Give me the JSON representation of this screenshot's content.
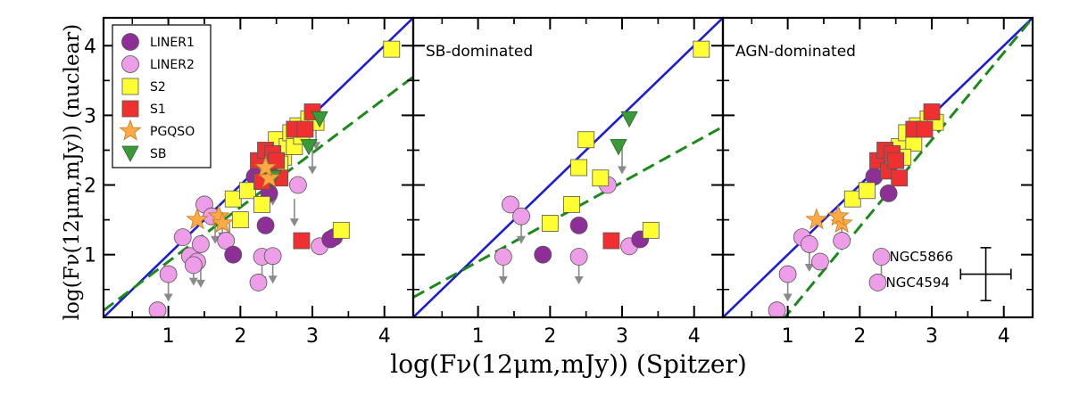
{
  "chart_data": {
    "type": "scatter",
    "xlabel": "log(Fν(12μm,mJy)) (Spitzer)",
    "ylabel": "log(Fν(12μm,mJy)) (nuclear)",
    "xlim": [
      0.1,
      4.4
    ],
    "ylim": [
      0.1,
      4.4
    ],
    "xticks": [
      "1",
      "2",
      "3",
      "4"
    ],
    "yticks": [
      "1",
      "2",
      "3",
      "4"
    ],
    "grid": false,
    "legend": {
      "location": "top-left",
      "entries": [
        {
          "label": "LINER1",
          "marker": "circle",
          "color": "#8e2f98"
        },
        {
          "label": "LINER2",
          "marker": "circle",
          "color": "#ee9ee8"
        },
        {
          "label": "S2",
          "marker": "square",
          "color": "#ffff33"
        },
        {
          "label": "S1",
          "marker": "square",
          "color": "#f03030"
        },
        {
          "label": "PGQSO",
          "marker": "star",
          "color": "#ffaa44"
        },
        {
          "label": "SB",
          "marker": "triangle-down",
          "color": "#3a9a3a"
        }
      ]
    },
    "panels": [
      {
        "label": "",
        "fits": [
          {
            "style": "one-to-one",
            "color": "#1c1cd8",
            "slope": 1.0,
            "intercept": 0.0
          },
          {
            "style": "dashed",
            "color": "#1a8a1a",
            "slope": 0.78,
            "intercept": 0.12
          }
        ],
        "points": {
          "LINER1": [
            [
              2.2,
              2.12
            ],
            [
              2.4,
              1.88
            ],
            [
              2.35,
              1.42
            ],
            [
              1.9,
              1.0
            ],
            [
              3.3,
              1.25
            ],
            [
              3.25,
              1.22
            ]
          ],
          "LINER2": [
            [
              0.85,
              0.2
            ],
            [
              1.0,
              0.72
            ],
            [
              1.2,
              1.25
            ],
            [
              1.3,
              0.98
            ],
            [
              1.4,
              0.9
            ],
            [
              1.45,
              1.15
            ],
            [
              1.5,
              1.72
            ],
            [
              1.6,
              1.55
            ],
            [
              1.8,
              1.2
            ],
            [
              2.25,
              0.6
            ],
            [
              2.3,
              0.97
            ],
            [
              2.45,
              0.98
            ],
            [
              2.8,
              2.0
            ],
            [
              3.1,
              1.12
            ],
            [
              1.35,
              0.85
            ]
          ],
          "S2": [
            [
              1.9,
              1.8
            ],
            [
              2.0,
              1.5
            ],
            [
              2.1,
              1.92
            ],
            [
              2.3,
              1.72
            ],
            [
              2.4,
              2.3
            ],
            [
              2.5,
              2.65
            ],
            [
              2.6,
              2.4
            ],
            [
              2.65,
              2.55
            ],
            [
              2.7,
              2.75
            ],
            [
              2.75,
              2.55
            ],
            [
              2.8,
              2.85
            ],
            [
              2.95,
              2.95
            ],
            [
              3.05,
              2.9
            ],
            [
              3.4,
              1.35
            ],
            [
              4.1,
              3.95
            ],
            [
              2.55,
              2.3
            ],
            [
              2.85,
              2.7
            ]
          ],
          "S1": [
            [
              2.25,
              2.35
            ],
            [
              2.35,
              2.5
            ],
            [
              2.4,
              2.2
            ],
            [
              2.45,
              2.45
            ],
            [
              2.5,
              2.35
            ],
            [
              2.55,
              2.1
            ],
            [
              2.75,
              2.8
            ],
            [
              2.9,
              2.8
            ],
            [
              3.0,
              3.05
            ],
            [
              2.85,
              1.2
            ],
            [
              2.3,
              2.05
            ]
          ],
          "PGQSO": [
            [
              1.4,
              1.5
            ],
            [
              1.7,
              1.55
            ],
            [
              1.75,
              1.45
            ],
            [
              2.4,
              2.1
            ],
            [
              2.35,
              2.25
            ]
          ],
          "SB": [
            [
              2.45,
              2.1
            ],
            [
              3.1,
              2.95
            ],
            [
              2.95,
              2.55
            ]
          ]
        },
        "upper_limits": [
          [
            1.0,
            0.72
          ],
          [
            1.35,
            0.95
          ],
          [
            1.45,
            0.92
          ],
          [
            1.65,
            1.55
          ],
          [
            1.75,
            1.6
          ],
          [
            1.85,
            1.45
          ],
          [
            2.3,
            0.97
          ],
          [
            2.45,
            0.98
          ],
          [
            2.55,
            2.4
          ],
          [
            2.75,
            1.8
          ],
          [
            3.0,
            2.55
          ],
          [
            3.05,
            2.9
          ],
          [
            2.45,
            2.1
          ]
        ]
      },
      {
        "label": "SB-dominated",
        "fits": [
          {
            "style": "one-to-one",
            "color": "#1c1cd8",
            "slope": 1.0,
            "intercept": 0.0
          },
          {
            "style": "dashed",
            "color": "#1a8a1a",
            "slope": 0.57,
            "intercept": 0.33
          }
        ],
        "points": {
          "LINER1": [
            [
              1.9,
              1.0
            ],
            [
              2.4,
              1.42
            ],
            [
              3.25,
              1.22
            ]
          ],
          "LINER2": [
            [
              1.35,
              0.97
            ],
            [
              1.45,
              1.72
            ],
            [
              1.6,
              1.55
            ],
            [
              2.4,
              0.97
            ],
            [
              2.8,
              2.0
            ],
            [
              3.1,
              1.12
            ]
          ],
          "S2": [
            [
              2.0,
              1.45
            ],
            [
              2.3,
              1.72
            ],
            [
              2.4,
              2.25
            ],
            [
              2.5,
              2.65
            ],
            [
              2.7,
              2.1
            ],
            [
              3.4,
              1.35
            ],
            [
              4.1,
              3.95
            ]
          ],
          "S1": [
            [
              2.85,
              1.2
            ]
          ],
          "PGQSO": [],
          "SB": [
            [
              3.1,
              2.95
            ],
            [
              2.95,
              2.55
            ]
          ]
        },
        "upper_limits": [
          [
            1.35,
            0.97
          ],
          [
            1.6,
            1.55
          ],
          [
            2.4,
            0.97
          ],
          [
            3.0,
            2.55
          ]
        ]
      },
      {
        "label": "AGN-dominated",
        "fits": [
          {
            "style": "one-to-one",
            "color": "#1c1cd8",
            "slope": 1.0,
            "intercept": 0.0
          },
          {
            "style": "dashed",
            "color": "#1a8a1a",
            "slope": 1.25,
            "intercept": -1.1
          }
        ],
        "points": {
          "LINER1": [
            [
              2.2,
              2.12
            ],
            [
              2.4,
              1.88
            ]
          ],
          "LINER2": [
            [
              0.85,
              0.2
            ],
            [
              1.0,
              0.72
            ],
            [
              1.2,
              1.25
            ],
            [
              1.3,
              1.15
            ],
            [
              1.45,
              0.9
            ],
            [
              1.75,
              1.2
            ],
            [
              2.25,
              0.6
            ],
            [
              2.3,
              0.97
            ]
          ],
          "S2": [
            [
              1.9,
              1.8
            ],
            [
              2.1,
              1.92
            ],
            [
              2.4,
              2.3
            ],
            [
              2.55,
              2.55
            ],
            [
              2.65,
              2.75
            ],
            [
              2.75,
              2.6
            ],
            [
              2.8,
              2.85
            ],
            [
              2.95,
              2.95
            ],
            [
              3.05,
              2.9
            ],
            [
              2.6,
              2.4
            ]
          ],
          "S1": [
            [
              2.25,
              2.35
            ],
            [
              2.35,
              2.5
            ],
            [
              2.4,
              2.2
            ],
            [
              2.45,
              2.45
            ],
            [
              2.5,
              2.35
            ],
            [
              2.55,
              2.1
            ],
            [
              2.75,
              2.8
            ],
            [
              2.9,
              2.8
            ],
            [
              3.0,
              3.05
            ]
          ],
          "PGQSO": [
            [
              1.4,
              1.5
            ],
            [
              1.75,
              1.45
            ],
            [
              1.7,
              1.55
            ]
          ],
          "SB": []
        },
        "upper_limits": [
          [
            1.0,
            0.72
          ],
          [
            1.3,
            1.15
          ],
          [
            1.75,
            1.45
          ],
          [
            2.3,
            0.97
          ]
        ],
        "annotations": [
          {
            "text": "NGC5866",
            "x": 2.3,
            "y": 0.97
          },
          {
            "text": "NGC4594",
            "x": 2.25,
            "y": 0.6
          }
        ],
        "errorbar": {
          "x": 3.75,
          "y": 0.72,
          "xerr": 0.35,
          "yerr": 0.38
        }
      }
    ]
  }
}
